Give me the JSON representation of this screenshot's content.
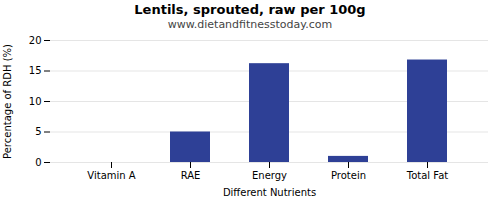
{
  "chart_data": {
    "type": "bar",
    "title": "Lentils, sprouted, raw per 100g",
    "subtitle": "www.dietandfitnesstoday.com",
    "categories": [
      "Vitamin A",
      "RAE",
      "Energy",
      "Protein",
      "Total Fat"
    ],
    "values": [
      0.0,
      5.0,
      16.2,
      1.0,
      16.8
    ],
    "color": "#2e4096",
    "xlabel": "Different Nutrients",
    "ylabel": "Percentage of RDH (%)",
    "ylim": [
      0,
      20
    ],
    "yticks": [
      0,
      5,
      10,
      15,
      20
    ],
    "grid": true
  }
}
